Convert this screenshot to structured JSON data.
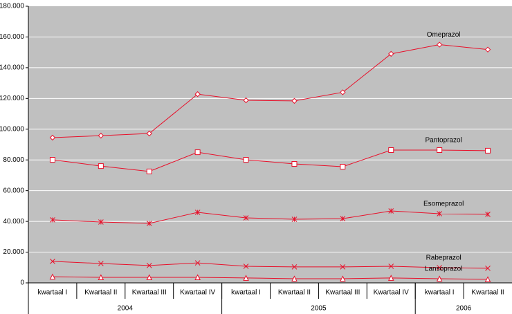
{
  "chart_data": {
    "type": "line",
    "categories": [
      "kwartaal I",
      "Kwartaal II",
      "Kwartaal III",
      "Kwartaal IV",
      "kwartaal I",
      "Kwartaal II",
      "Kwartaal III",
      "Kwartaal IV",
      "kwartaal I",
      "Kwartaal II"
    ],
    "groups": [
      {
        "name": "2004",
        "count": 4
      },
      {
        "name": "2005",
        "count": 4
      },
      {
        "name": "2006",
        "count": 2
      }
    ],
    "series": [
      {
        "name": "Omeprazol",
        "color": "#e8102a",
        "marker": "diamond",
        "values": [
          94500,
          95800,
          97200,
          122800,
          118800,
          118400,
          124000,
          149000,
          155000,
          151800
        ]
      },
      {
        "name": "Pantoprazol",
        "color": "#e8102a",
        "marker": "square",
        "values": [
          80100,
          76000,
          72500,
          85000,
          80100,
          77400,
          75600,
          86400,
          86400,
          86000
        ]
      },
      {
        "name": "Esomeprazol",
        "color": "#e8102a",
        "marker": "asterisk",
        "values": [
          41000,
          39600,
          38700,
          45900,
          42300,
          41400,
          41800,
          46800,
          45000,
          44600
        ]
      },
      {
        "name": "Rabeprazol",
        "color": "#e8102a",
        "marker": "cross",
        "values": [
          14000,
          12600,
          11300,
          13000,
          10800,
          10400,
          10400,
          10800,
          9900,
          9500
        ]
      },
      {
        "name": "Lansoprazol",
        "color": "#e8102a",
        "marker": "triangle",
        "values": [
          4000,
          3600,
          3600,
          3600,
          3200,
          2700,
          2700,
          3200,
          2700,
          2300
        ]
      }
    ],
    "ylim": [
      0,
      180000
    ],
    "yticks": [
      0,
      {
        "value": 20000,
        "label": "20.000"
      },
      {
        "value": 40000,
        "label": "40.000"
      },
      {
        "value": 60000,
        "label": "60.000"
      },
      {
        "value": 80000,
        "label": "80.000"
      },
      {
        "value": 100000,
        "label": "100.000"
      },
      {
        "value": 120000,
        "label": "120.000"
      },
      {
        "value": 140000,
        "label": "140.000"
      },
      {
        "value": 160000,
        "label": "160.000"
      },
      {
        "value": 180000,
        "label": "180.000"
      }
    ],
    "grid": true,
    "background": "#c0c0c0"
  }
}
